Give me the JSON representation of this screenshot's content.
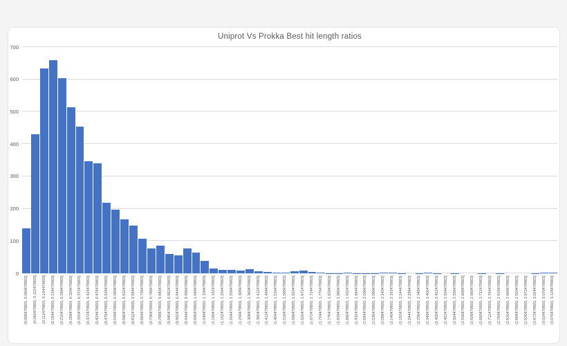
{
  "page": {
    "background_color": "#f4f4f5",
    "card_background": "#ffffff",
    "card_border_color": "#e4e4e6"
  },
  "chart_data": {
    "type": "bar",
    "subtype": "histogram",
    "title": "Uniprot Vs Prokka Best hit length ratios",
    "title_color": "#595959",
    "bar_color": "#4472c4",
    "gridline_color": "#d9d9d9",
    "axis_label_color": "#595959",
    "xlabel": "",
    "ylabel": "",
    "ylim": [
      0,
      700
    ],
    "yticks": [
      0,
      100,
      200,
      300,
      400,
      500,
      600,
      700
    ],
    "grid": true,
    "legend": false,
    "x_tick_rotation": 90,
    "bin_width": 0.052,
    "categories": [
      "(0.008479803, 0.060479803]",
      "(0.060479803, 0.112479803]",
      "(0.112479803, 0.164479803]",
      "(0.164479803, 0.216479803]",
      "(0.216479803, 0.268479803]",
      "(0.268479803, 0.320479803]",
      "(0.320479803, 0.372479803]",
      "(0.372479803, 0.424479803]",
      "(0.424479803, 0.476479803]",
      "(0.476479803, 0.528479803]",
      "(0.528479803, 0.580479803]",
      "(0.580479803, 0.632479803]",
      "(0.632479803, 0.684479803]",
      "(0.684479803, 0.736479803]",
      "(0.736479803, 0.788479803]",
      "(0.788479803, 0.840479803]",
      "(0.840479803, 0.892479803]",
      "(0.892479803, 0.944479803]",
      "(0.944479803, 0.996479803]",
      "(0.996479803, 1.048479803]",
      "(1.048479803, 1.100479803]",
      "(1.100479803, 1.152479803]",
      "(1.152479803, 1.204479803]",
      "(1.204479803, 1.256479803]",
      "(1.256479803, 1.308479803]",
      "(1.308479803, 1.360479803]",
      "(1.360479803, 1.412479803]",
      "(1.412479803, 1.464479803]",
      "(1.464479803, 1.516479803]",
      "(1.516479803, 1.568479803]",
      "(1.568479803, 1.620479803]",
      "(1.620479803, 1.672479803]",
      "(1.672479803, 1.724479803]",
      "(1.724479803, 1.776479803]",
      "(1.776479803, 1.828479803]",
      "(1.828479803, 1.880479803]",
      "(1.880479803, 1.932479803]",
      "(1.932479803, 1.984479803]",
      "(1.984479803, 2.036479803]",
      "(2.036479803, 2.088479803]",
      "(2.088479803, 2.140479803]",
      "(2.140479803, 2.192479803]",
      "(2.192479803, 2.244479803]",
      "(2.244479803, 2.296479803]",
      "(2.296479803, 2.348479803]",
      "(2.348479803, 2.400479803]",
      "(2.400479803, 2.452479803]",
      "(2.452479803, 2.504479803]",
      "(2.504479803, 2.556479803]",
      "(2.556479803, 2.608479803]",
      "(2.608479803, 2.660479803]",
      "(2.660479803, 2.712479803]",
      "(2.712479803, 2.764479803]",
      "(2.764479803, 2.816479803]",
      "(2.816479803, 2.868479803]",
      "(2.868479803, 2.920479803]",
      "(2.920479803, 2.972479803]",
      "(2.972479803, 3.024479803]",
      "(3.024479803, 3.076479803]",
      "(3.076479803, 3.128479803]"
    ],
    "values": [
      140,
      430,
      633,
      660,
      604,
      514,
      454,
      347,
      341,
      219,
      198,
      168,
      148,
      108,
      78,
      85,
      59,
      56,
      78,
      64,
      38,
      14,
      11,
      10,
      9,
      12,
      6,
      4,
      3,
      3,
      7,
      8,
      4,
      2,
      1,
      1,
      3,
      1,
      1,
      1,
      3,
      3,
      1,
      0,
      1,
      3,
      1,
      0,
      1,
      0,
      0,
      1,
      0,
      1,
      0,
      0,
      0,
      1,
      2,
      2
    ]
  }
}
